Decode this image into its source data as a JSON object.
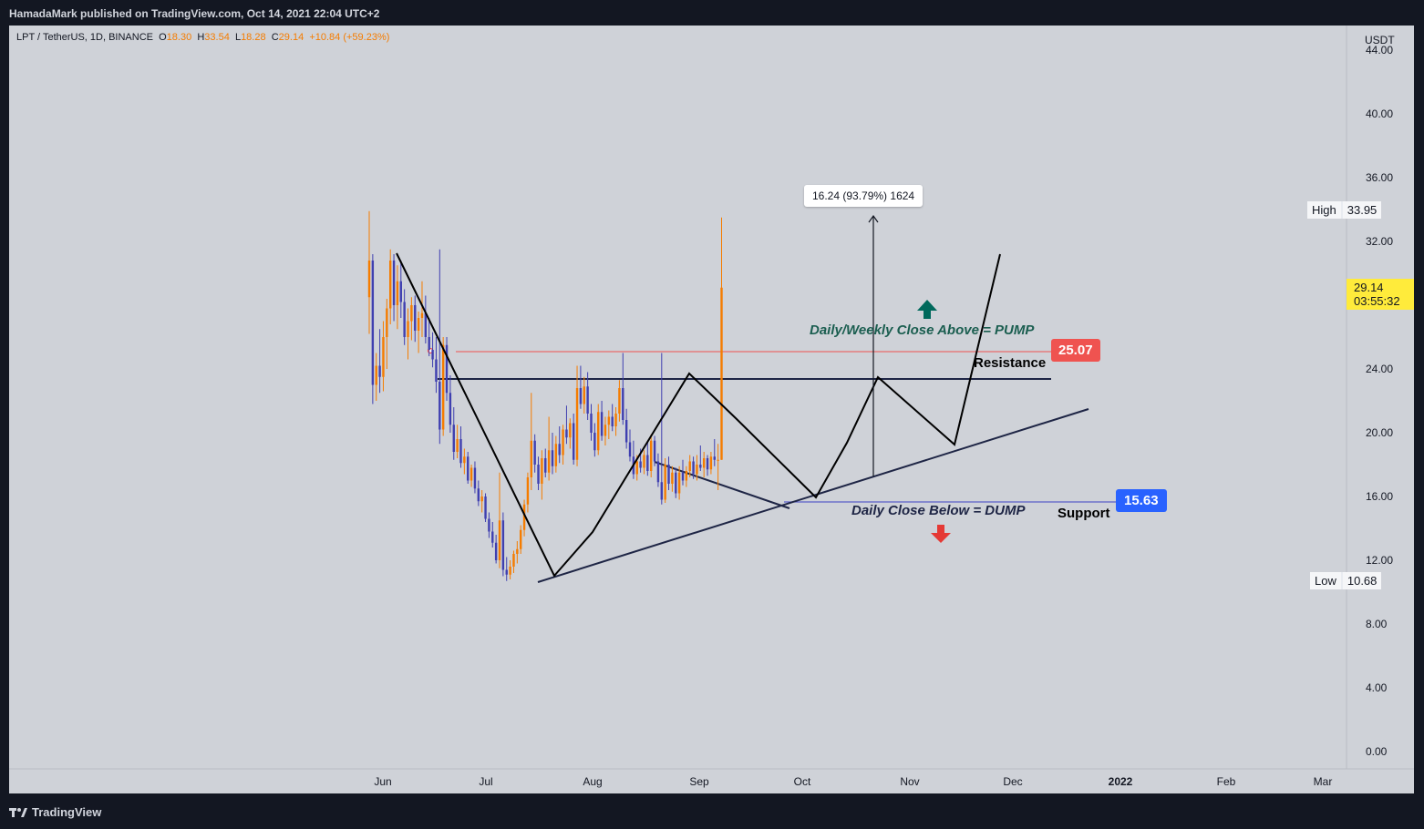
{
  "header": {
    "publisher": "HamadaMark published on TradingView.com, Oct 14, 2021 22:04 UTC+2"
  },
  "symbol": {
    "name": "LPT / TetherUS, 1D, BINANCE",
    "o_label": "O",
    "o_value": "18.30",
    "h_label": "H",
    "h_value": "33.54",
    "l_label": "L",
    "l_value": "18.28",
    "c_label": "C",
    "c_value": "29.14",
    "change": "+10.84 (+59.23%)"
  },
  "price_axis": {
    "unit": "USDT",
    "ticks": [
      "44.00",
      "40.00",
      "36.00",
      "32.00",
      "24.00",
      "20.00",
      "16.00",
      "12.00",
      "8.00",
      "4.00",
      "0.00"
    ]
  },
  "time_axis": {
    "labels": [
      "Jun",
      "Jul",
      "Aug",
      "Sep",
      "Oct",
      "Nov",
      "Dec",
      "2022",
      "Feb",
      "Mar"
    ]
  },
  "markers": {
    "high_label": "High",
    "high_value": "33.95",
    "low_label": "Low",
    "low_value": "10.68",
    "last_price": "29.14",
    "countdown": "03:55:32",
    "resistance_price": "25.07",
    "support_price": "15.63"
  },
  "annotations": {
    "measure": "16.24 (93.79%) 1624",
    "pump": "Daily/Weekly Close Above = PUMP",
    "dump": "Daily Close Below = DUMP",
    "resistance": "Resistance",
    "support": "Support"
  },
  "footer": {
    "brand": "TradingView"
  },
  "colors": {
    "up": "#f57c00",
    "down": "#3f3fb0",
    "background": "#cfd2d8",
    "resistance_line": "#ef5350",
    "support_line": "#5b5fc7",
    "support_box": "#2962ff",
    "pump_arrow": "#00695c",
    "dump_arrow": "#e53935",
    "last_price_box": "#ffeb3b"
  },
  "chart_data": {
    "type": "candlestick",
    "title": "LPT / TetherUS, 1D, BINANCE",
    "ylim": [
      0,
      44
    ],
    "series": [
      {
        "ohlc": [
          [
            28.5,
            33.9,
            26.2,
            30.8
          ],
          [
            30.8,
            31.2,
            21.8,
            23.0
          ],
          [
            23.0,
            25.0,
            22.0,
            24.2
          ],
          [
            24.2,
            26.5,
            22.5,
            23.5
          ],
          [
            23.5,
            27.0,
            22.6,
            26.0
          ],
          [
            26.0,
            28.4,
            24.0,
            27.8
          ],
          [
            27.8,
            31.5,
            26.8,
            30.8
          ],
          [
            30.8,
            31.2,
            27.0,
            28.0
          ],
          [
            28.0,
            30.5,
            26.5,
            29.5
          ],
          [
            29.5,
            30.8,
            27.2,
            28.2
          ],
          [
            28.2,
            29.0,
            25.5,
            26.0
          ],
          [
            26.0,
            27.8,
            24.6,
            27.0
          ],
          [
            27.0,
            28.5,
            25.8,
            28.0
          ],
          [
            28.0,
            28.6,
            25.7,
            26.4
          ],
          [
            26.4,
            27.6,
            25.0,
            27.2
          ],
          [
            27.2,
            29.5,
            26.0,
            27.5
          ],
          [
            27.5,
            28.6,
            25.6,
            26.0
          ],
          [
            26.0,
            27.2,
            24.8,
            25.2
          ],
          [
            25.2,
            26.3,
            24.1,
            24.6
          ],
          [
            24.6,
            26.0,
            22.5,
            23.2
          ],
          [
            23.2,
            31.5,
            19.3,
            20.2
          ],
          [
            20.2,
            26.0,
            19.8,
            25.5
          ],
          [
            25.5,
            26.0,
            22.0,
            22.5
          ],
          [
            22.5,
            23.6,
            20.0,
            20.5
          ],
          [
            20.5,
            21.6,
            18.3,
            18.8
          ],
          [
            18.8,
            20.5,
            18.4,
            19.6
          ],
          [
            19.6,
            20.4,
            17.8,
            18.1
          ],
          [
            18.1,
            19.0,
            17.4,
            18.5
          ],
          [
            18.5,
            18.8,
            16.8,
            17.0
          ],
          [
            17.0,
            18.0,
            16.6,
            17.8
          ],
          [
            17.8,
            18.2,
            16.2,
            16.5
          ],
          [
            16.5,
            17.0,
            15.4,
            15.7
          ],
          [
            15.7,
            16.4,
            15.0,
            16.0
          ],
          [
            16.0,
            16.2,
            14.4,
            14.6
          ],
          [
            14.6,
            15.0,
            13.4,
            13.8
          ],
          [
            13.8,
            14.4,
            12.8,
            13.1
          ],
          [
            13.1,
            13.6,
            11.8,
            12.0
          ],
          [
            12.0,
            17.5,
            11.5,
            14.5
          ],
          [
            14.5,
            15.0,
            11.0,
            11.4
          ],
          [
            11.4,
            12.2,
            10.7,
            11.1
          ],
          [
            11.1,
            12.0,
            10.8,
            11.6
          ],
          [
            11.6,
            12.6,
            11.2,
            12.4
          ],
          [
            12.4,
            13.2,
            11.8,
            12.7
          ],
          [
            12.7,
            14.2,
            12.4,
            13.9
          ],
          [
            13.9,
            15.8,
            13.5,
            15.5
          ],
          [
            15.5,
            17.5,
            15.0,
            17.2
          ],
          [
            17.2,
            22.5,
            16.4,
            19.5
          ],
          [
            19.5,
            19.9,
            17.5,
            18.0
          ],
          [
            18.0,
            18.5,
            16.4,
            16.8
          ],
          [
            16.8,
            18.9,
            15.8,
            18.4
          ],
          [
            18.4,
            19.0,
            17.2,
            17.5
          ],
          [
            17.5,
            21.0,
            17.0,
            18.9
          ],
          [
            18.9,
            20.0,
            17.4,
            17.9
          ],
          [
            17.9,
            19.8,
            17.5,
            19.3
          ],
          [
            19.3,
            20.4,
            18.1,
            18.6
          ],
          [
            18.6,
            20.5,
            18.0,
            20.2
          ],
          [
            20.2,
            21.7,
            19.3,
            19.7
          ],
          [
            19.7,
            20.9,
            19.0,
            20.6
          ],
          [
            20.6,
            21.2,
            18.0,
            18.3
          ],
          [
            18.3,
            24.2,
            17.9,
            22.8
          ],
          [
            22.8,
            24.2,
            21.5,
            21.8
          ],
          [
            21.8,
            23.5,
            21.2,
            22.9
          ],
          [
            22.9,
            23.8,
            20.8,
            21.2
          ],
          [
            21.2,
            21.8,
            19.5,
            20.0
          ],
          [
            20.0,
            20.6,
            18.5,
            18.9
          ],
          [
            18.9,
            21.8,
            18.6,
            21.3
          ],
          [
            21.3,
            22.0,
            19.5,
            19.8
          ],
          [
            19.8,
            21.0,
            19.2,
            20.5
          ],
          [
            20.5,
            21.4,
            19.6,
            21.0
          ],
          [
            21.0,
            21.8,
            20.1,
            20.4
          ],
          [
            20.4,
            21.6,
            19.8,
            21.2
          ],
          [
            21.2,
            23.3,
            20.7,
            22.8
          ],
          [
            22.8,
            25.0,
            20.5,
            20.8
          ],
          [
            20.8,
            21.5,
            19.0,
            19.4
          ],
          [
            19.4,
            20.2,
            18.2,
            18.5
          ],
          [
            18.5,
            19.5,
            17.1,
            17.4
          ],
          [
            17.4,
            18.6,
            17.0,
            18.2
          ],
          [
            18.2,
            19.0,
            17.5,
            17.8
          ],
          [
            17.8,
            18.9,
            17.4,
            18.6
          ],
          [
            18.6,
            19.4,
            17.3,
            17.6
          ],
          [
            17.6,
            19.9,
            17.2,
            19.5
          ],
          [
            19.5,
            19.8,
            17.9,
            18.2
          ],
          [
            18.2,
            18.7,
            16.6,
            16.9
          ],
          [
            16.9,
            25.0,
            15.5,
            15.8
          ],
          [
            15.8,
            18.4,
            15.6,
            18.0
          ],
          [
            18.0,
            18.5,
            16.4,
            16.8
          ],
          [
            16.8,
            17.9,
            16.3,
            17.5
          ],
          [
            17.5,
            17.8,
            15.9,
            16.2
          ],
          [
            16.2,
            17.9,
            15.8,
            17.5
          ],
          [
            17.5,
            18.3,
            16.7,
            17.0
          ],
          [
            17.0,
            17.9,
            16.6,
            17.6
          ],
          [
            17.6,
            18.6,
            17.2,
            18.2
          ],
          [
            18.2,
            18.5,
            17.1,
            17.4
          ],
          [
            17.4,
            18.6,
            17.0,
            18.0
          ],
          [
            18.0,
            19.2,
            17.6,
            17.8
          ],
          [
            17.8,
            18.8,
            17.2,
            18.4
          ],
          [
            18.4,
            18.6,
            17.3,
            17.7
          ],
          [
            17.7,
            18.8,
            17.4,
            18.5
          ],
          [
            18.5,
            19.6,
            17.9,
            18.3
          ],
          [
            18.3,
            19.3,
            16.4,
            18.3
          ],
          [
            18.3,
            33.5,
            18.3,
            29.1
          ]
        ]
      }
    ]
  }
}
